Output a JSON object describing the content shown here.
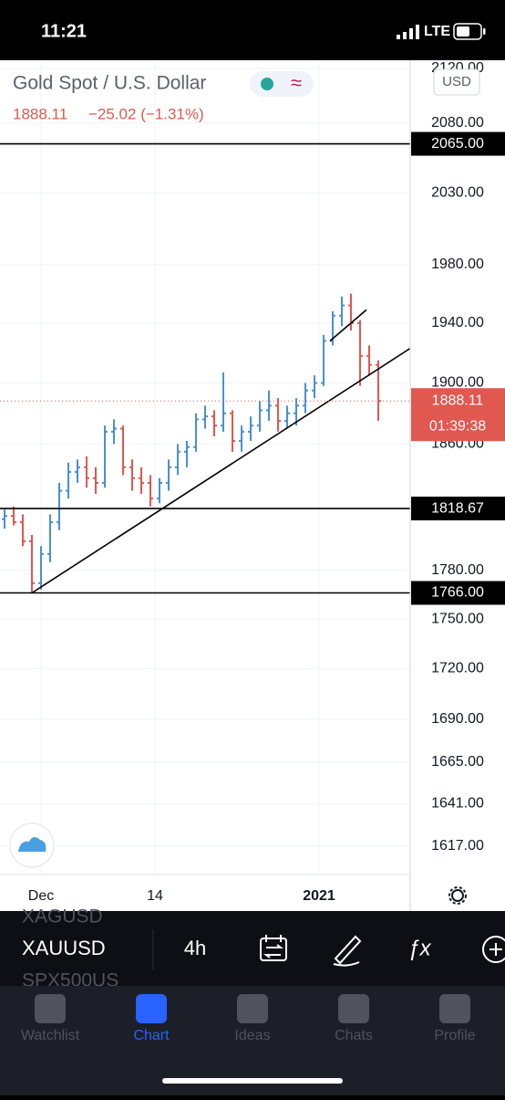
{
  "status_bar": {
    "time": "11:21",
    "network": "LTE"
  },
  "header": {
    "title": "Gold Spot / U.S. Dollar",
    "change": "−25.02 (−1.31%)",
    "currency": "USD"
  },
  "chart_data": {
    "type": "ohlc",
    "log_scale": true,
    "grid": true,
    "up_color": "#4a8fd6",
    "down_color": "#e0584f",
    "ylim": [
      1601,
      2126
    ],
    "yticks": [
      {
        "value": 2120,
        "label": "2120.00"
      },
      {
        "value": 2080,
        "label": "2080.00"
      },
      {
        "value": 2030,
        "label": "2030.00"
      },
      {
        "value": 1980,
        "label": "1980.00"
      },
      {
        "value": 1940,
        "label": "1940.00"
      },
      {
        "value": 1900,
        "label": "1900.00"
      },
      {
        "value": 1860,
        "label": "1860.00"
      },
      {
        "value": 1780,
        "label": "1780.00"
      },
      {
        "value": 1750,
        "label": "1750.00"
      },
      {
        "value": 1720,
        "label": "1720.00"
      },
      {
        "value": 1690,
        "label": "1690.00"
      },
      {
        "value": 1665,
        "label": "1665.00"
      },
      {
        "value": 1641,
        "label": "1641.00"
      },
      {
        "value": 1617,
        "label": "1617.00"
      }
    ],
    "xlim": [
      -0.5,
      44.5
    ],
    "xticks": [
      {
        "value": 4,
        "label": "Dec"
      },
      {
        "value": 16.5,
        "label": "14"
      },
      {
        "value": 34.5,
        "label": "2021"
      }
    ],
    "open": [
      1812,
      1814,
      1810,
      1798,
      1772,
      1790,
      1810,
      1830,
      1842,
      1845,
      1838,
      1835,
      1868,
      1870,
      1845,
      1838,
      1835,
      1825,
      1835,
      1845,
      1855,
      1858,
      1876,
      1878,
      1872,
      1880,
      1862,
      1868,
      1872,
      1882,
      1885,
      1875,
      1880,
      1885,
      1895,
      1900,
      1928,
      1945,
      1952,
      1940,
      1918,
      1912
    ],
    "high": [
      1818,
      1820,
      1815,
      1802,
      1795,
      1815,
      1835,
      1848,
      1850,
      1852,
      1845,
      1872,
      1876,
      1872,
      1850,
      1845,
      1840,
      1838,
      1850,
      1860,
      1862,
      1880,
      1885,
      1882,
      1907,
      1882,
      1872,
      1878,
      1888,
      1895,
      1890,
      1885,
      1890,
      1900,
      1905,
      1932,
      1948,
      1958,
      1960,
      1942,
      1925,
      1915
    ],
    "low": [
      1806,
      1808,
      1795,
      1766,
      1768,
      1785,
      1805,
      1825,
      1835,
      1832,
      1828,
      1832,
      1860,
      1840,
      1830,
      1828,
      1820,
      1822,
      1830,
      1840,
      1845,
      1855,
      1870,
      1865,
      1868,
      1855,
      1855,
      1862,
      1868,
      1875,
      1868,
      1870,
      1872,
      1880,
      1890,
      1898,
      1925,
      1938,
      1935,
      1898,
      1905,
      1875
    ],
    "close": [
      1814,
      1810,
      1798,
      1772,
      1790,
      1810,
      1830,
      1842,
      1845,
      1838,
      1835,
      1868,
      1870,
      1845,
      1838,
      1835,
      1825,
      1835,
      1845,
      1855,
      1858,
      1876,
      1878,
      1872,
      1880,
      1862,
      1868,
      1872,
      1882,
      1885,
      1875,
      1880,
      1885,
      1895,
      1900,
      1928,
      1945,
      1952,
      1940,
      1918,
      1912,
      1888.11
    ],
    "hlines": [
      {
        "value": 2065,
        "label": "2065.00"
      },
      {
        "value": 1818.67,
        "label": "1818.67"
      },
      {
        "value": 1766,
        "label": "1766.00"
      }
    ],
    "last": {
      "value": 1888.11,
      "label": "1888.11",
      "countdown": "01:39:38"
    },
    "trendlines": [
      {
        "x": [
          3,
          44.5
        ],
        "y": [
          1766,
          1923
        ]
      },
      {
        "x": [
          35.7,
          39.7
        ],
        "y": [
          1928,
          1949
        ]
      }
    ]
  },
  "toolbar": {
    "symbols": [
      "XAGUSD",
      "XAUUSD",
      "SPX500US"
    ],
    "interval": "4h"
  },
  "tabs": [
    "Watchlist",
    "Chart",
    "Ideas",
    "Chats",
    "Profile"
  ]
}
